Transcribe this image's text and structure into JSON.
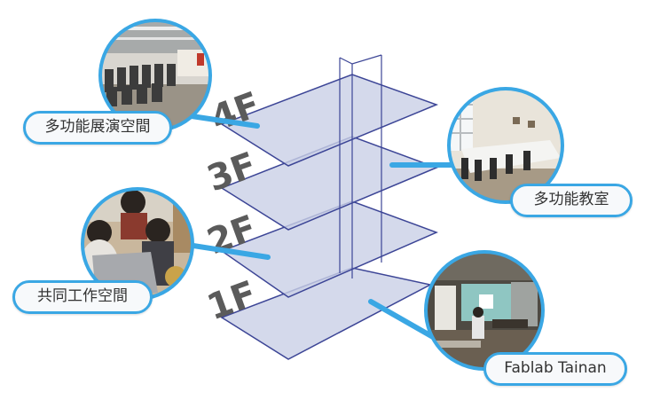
{
  "floors": [
    {
      "label": "4F",
      "room": "多功能展演空間",
      "icon": "exhibition-hall-photo"
    },
    {
      "label": "3F",
      "room": "多功能教室",
      "icon": "classroom-photo"
    },
    {
      "label": "2F",
      "room": "共同工作空間",
      "icon": "coworking-photo"
    },
    {
      "label": "1F",
      "room": "Fablab Tainan",
      "icon": "fablab-photo"
    }
  ],
  "colors": {
    "accent": "#3aa7e4",
    "slab_fill": "#c9d0e6",
    "slab_stroke": "#3c4596",
    "label_gray": "#5b5b5b"
  }
}
